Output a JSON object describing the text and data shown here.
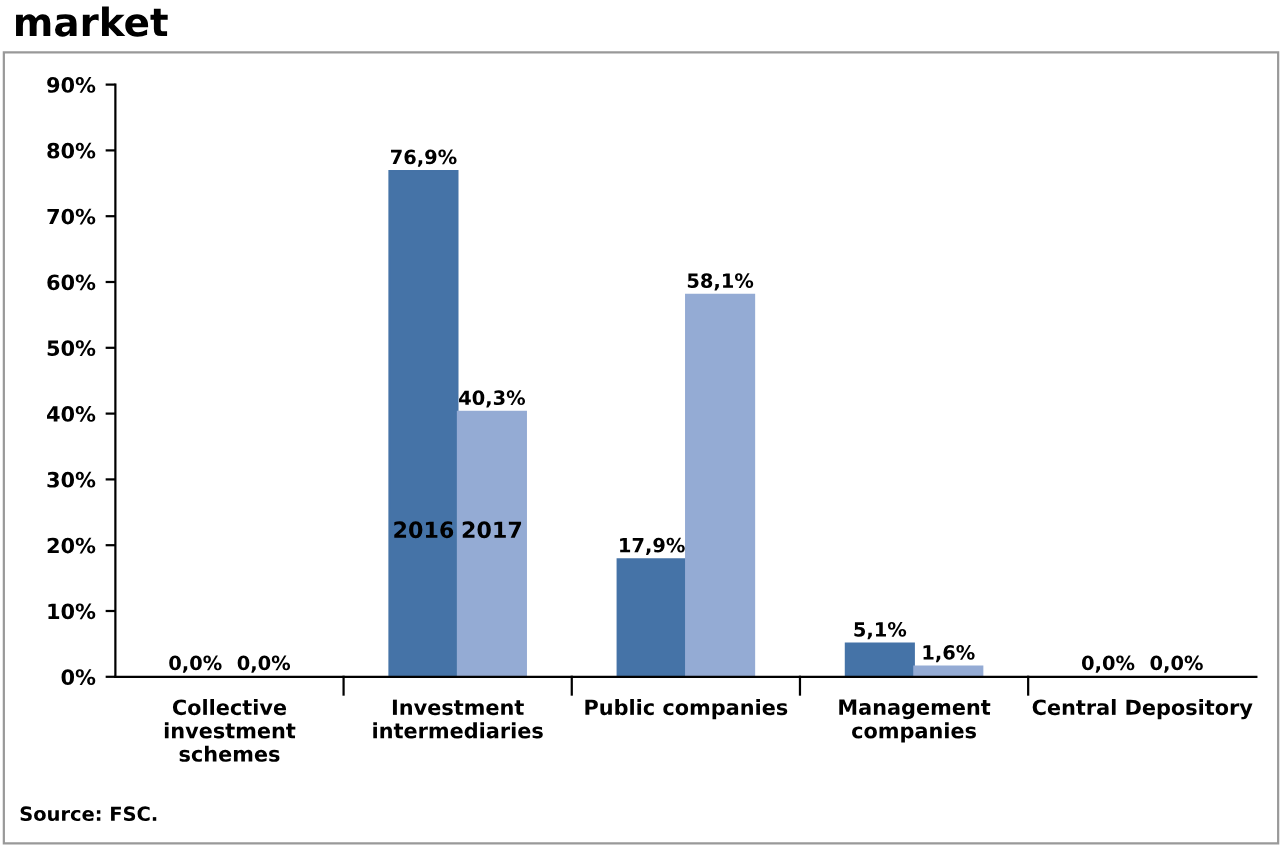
{
  "chart_data": {
    "type": "bar",
    "title": "market",
    "categories": [
      "Collective\ninvestment\nschemes",
      "Investment\nintermediaries",
      "Public companies",
      "Management\ncompanies",
      "Central Depository"
    ],
    "series": [
      {
        "name": "2016",
        "color": "#4573a7",
        "values": [
          0.0,
          76.9,
          17.9,
          5.1,
          0.0
        ],
        "value_labels": [
          "0,0%",
          "76,9%",
          "17,9%",
          "5,1%",
          "0,0%"
        ]
      },
      {
        "name": "2017",
        "color": "#94abd4",
        "values": [
          0.0,
          40.3,
          58.1,
          1.6,
          0.0
        ],
        "value_labels": [
          "0,0%",
          "40,3%",
          "58,1%",
          "1,6%",
          "0,0%"
        ]
      }
    ],
    "ylim": [
      0,
      90
    ],
    "yticks": [
      {
        "value": 0,
        "label": "0%"
      },
      {
        "value": 10,
        "label": "10%"
      },
      {
        "value": 20,
        "label": "20%"
      },
      {
        "value": 30,
        "label": "30%"
      },
      {
        "value": 40,
        "label": "40%"
      },
      {
        "value": 50,
        "label": "50%"
      },
      {
        "value": 60,
        "label": "60%"
      },
      {
        "value": 70,
        "label": "70%"
      },
      {
        "value": 80,
        "label": "80%"
      },
      {
        "value": 90,
        "label": "90%"
      }
    ],
    "grid": false,
    "legend": false,
    "annotations": [
      "Source: FSC."
    ]
  }
}
